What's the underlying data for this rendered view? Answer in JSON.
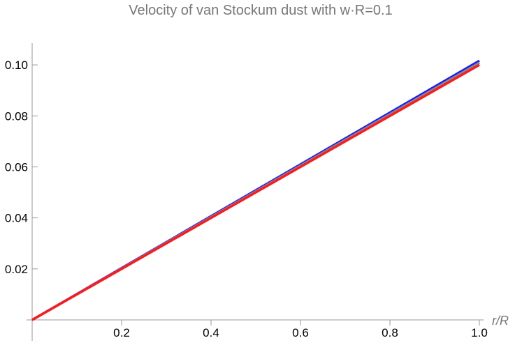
{
  "chart_data": {
    "type": "line",
    "title": "Velocity of van Stockum dust with w·R=0.1",
    "x_label": "r/R",
    "x": [
      0,
      1
    ],
    "series": [
      {
        "name": "blue",
        "color": "#1a1aff",
        "values": [
          0,
          0.1016
        ]
      },
      {
        "name": "gray",
        "color": "#888888",
        "values": [
          0,
          0.1008
        ]
      },
      {
        "name": "red",
        "color": "#ff1a1a",
        "values": [
          0,
          0.1
        ]
      }
    ],
    "xlim": [
      0,
      1
    ],
    "ylim": [
      0,
      0.1085
    ],
    "xticks": [
      0.2,
      0.4,
      0.6,
      0.8,
      {
        "value": 1,
        "label": "1.0"
      }
    ],
    "yticks": [
      0.02,
      0.04,
      0.06,
      0.08,
      {
        "value": 0.1,
        "label": "0.10"
      }
    ]
  }
}
